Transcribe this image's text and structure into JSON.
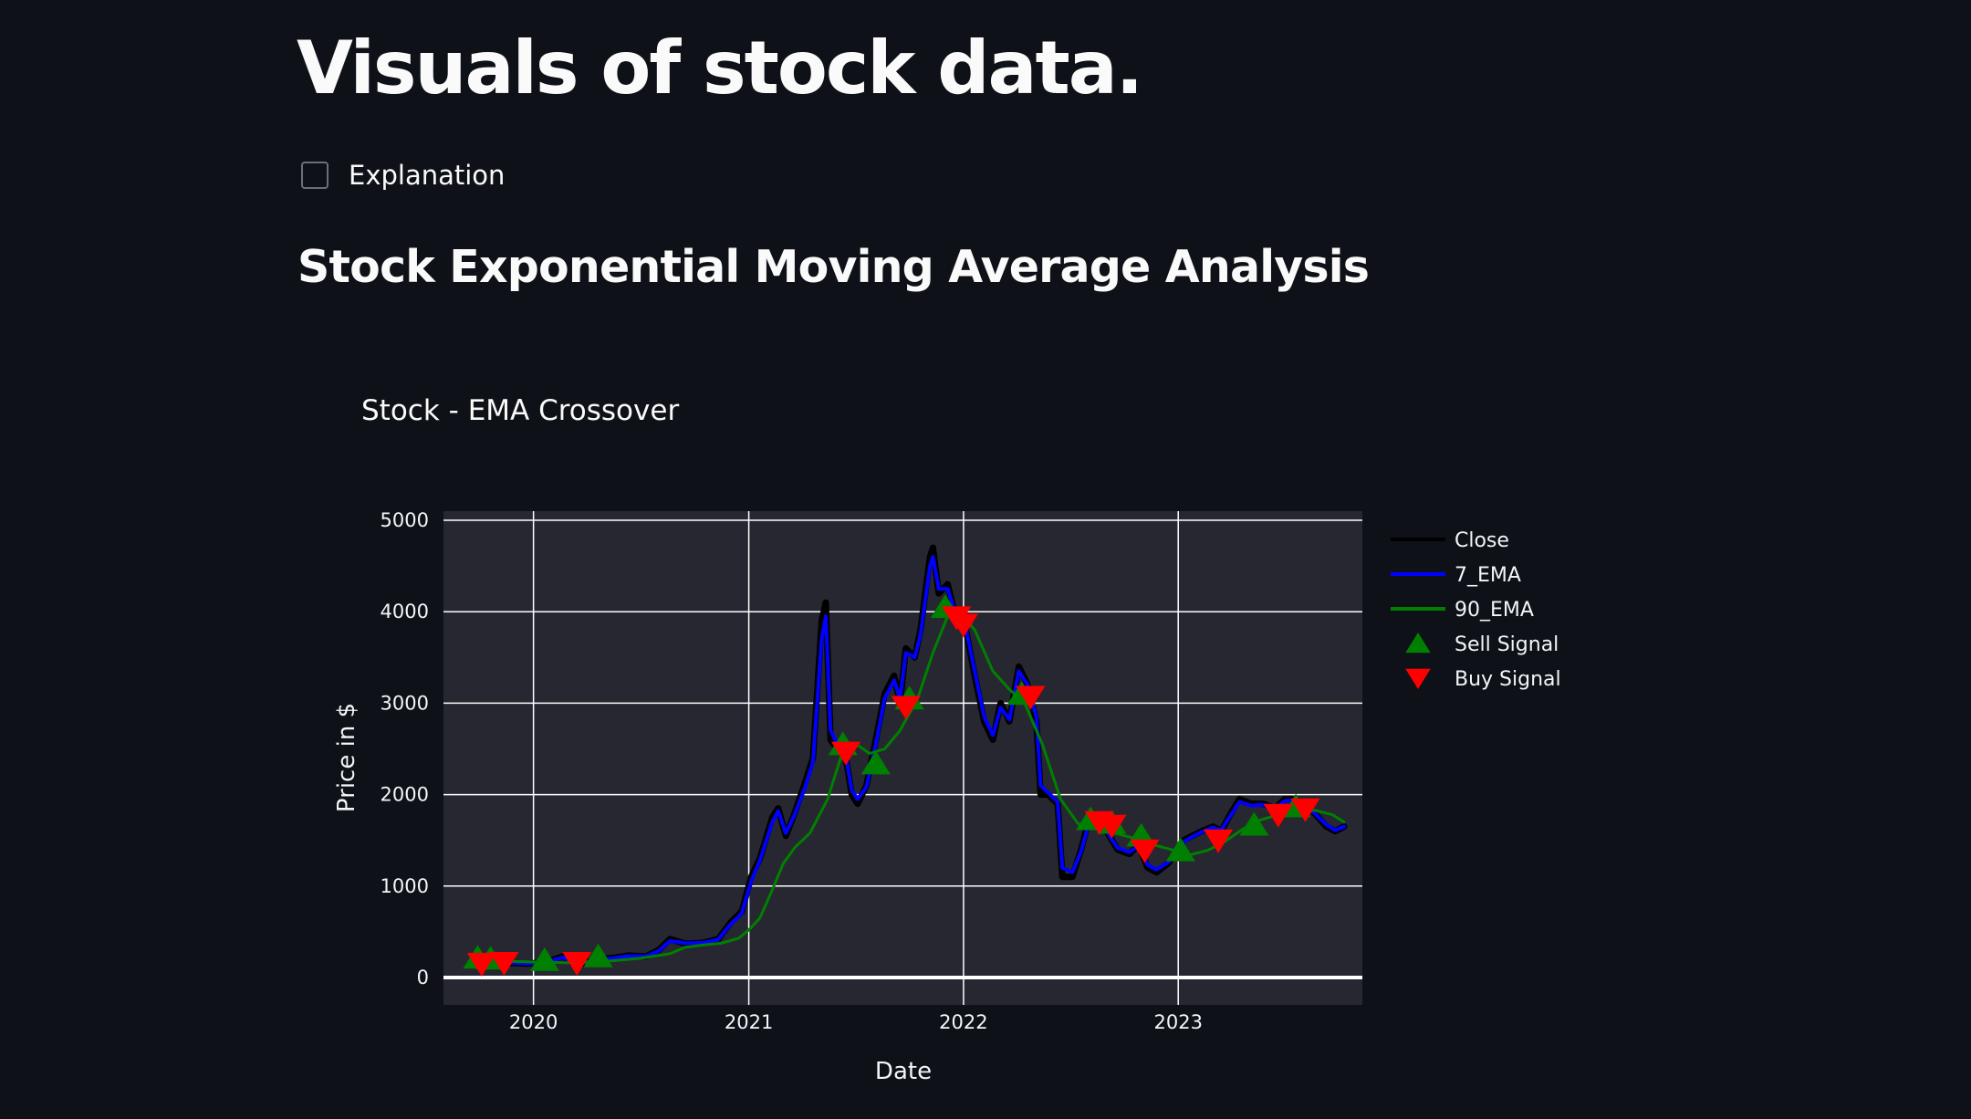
{
  "page": {
    "title": "Visuals of stock data.",
    "checkbox_label": "Explanation",
    "section_title": "Stock Exponential Moving Average Analysis"
  },
  "colors": {
    "background": "#0e1117",
    "plot_background": "#262730",
    "grid": "#ffffff",
    "close": "#000000",
    "ema7": "#0000ff",
    "ema90": "#008000",
    "sell": "#008000",
    "buy": "#ff0000"
  },
  "chart_data": {
    "type": "line",
    "title": "Stock - EMA Crossover",
    "xlabel": "Date",
    "ylabel": "Price in $",
    "xlim": [
      "2019-08-01",
      "2023-11-10"
    ],
    "ylim": [
      -300,
      5100
    ],
    "x_ticks": [
      "2020-01-01",
      "2021-01-01",
      "2022-01-01",
      "2023-01-01"
    ],
    "x_tick_labels": [
      "2020",
      "2021",
      "2022",
      "2023"
    ],
    "y_ticks": [
      0,
      1000,
      2000,
      3000,
      4000,
      5000
    ],
    "grid": true,
    "legend_position": "right",
    "series": [
      {
        "name": "Close",
        "x": [
          "2019-09-25",
          "2019-10-20",
          "2019-11-20",
          "2019-12-20",
          "2020-01-20",
          "2020-02-20",
          "2020-03-15",
          "2020-04-10",
          "2020-05-10",
          "2020-06-10",
          "2020-07-10",
          "2020-08-01",
          "2020-08-20",
          "2020-09-15",
          "2020-10-15",
          "2020-11-10",
          "2020-12-01",
          "2020-12-20",
          "2021-01-05",
          "2021-01-20",
          "2021-02-10",
          "2021-02-20",
          "2021-03-05",
          "2021-03-20",
          "2021-04-05",
          "2021-04-20",
          "2021-05-05",
          "2021-05-12",
          "2021-05-20",
          "2021-06-01",
          "2021-06-15",
          "2021-06-25",
          "2021-07-05",
          "2021-07-20",
          "2021-08-05",
          "2021-08-20",
          "2021-09-05",
          "2021-09-15",
          "2021-09-25",
          "2021-10-10",
          "2021-10-20",
          "2021-11-05",
          "2021-11-10",
          "2021-11-20",
          "2021-12-05",
          "2021-12-20",
          "2022-01-05",
          "2022-01-20",
          "2022-02-05",
          "2022-02-20",
          "2022-03-05",
          "2022-03-20",
          "2022-04-05",
          "2022-04-20",
          "2022-05-05",
          "2022-05-12",
          "2022-05-25",
          "2022-06-10",
          "2022-06-18",
          "2022-07-05",
          "2022-07-20",
          "2022-08-05",
          "2022-08-15",
          "2022-09-01",
          "2022-09-20",
          "2022-10-10",
          "2022-10-25",
          "2022-11-10",
          "2022-11-25",
          "2022-12-15",
          "2023-01-10",
          "2023-01-25",
          "2023-02-10",
          "2023-03-01",
          "2023-03-15",
          "2023-04-01",
          "2023-04-15",
          "2023-05-05",
          "2023-05-25",
          "2023-06-15",
          "2023-07-01",
          "2023-07-15",
          "2023-08-05",
          "2023-08-20",
          "2023-09-10",
          "2023-09-25",
          "2023-10-10"
        ],
        "values": [
          170,
          175,
          160,
          150,
          165,
          230,
          130,
          190,
          210,
          240,
          230,
          300,
          420,
          370,
          380,
          420,
          600,
          720,
          1100,
          1300,
          1750,
          1850,
          1550,
          1800,
          2100,
          2400,
          3900,
          4100,
          2600,
          2500,
          2400,
          2000,
          1900,
          2100,
          2600,
          3100,
          3300,
          3000,
          3600,
          3500,
          3800,
          4600,
          4700,
          4200,
          4300,
          3900,
          3800,
          3300,
          2800,
          2600,
          3000,
          2800,
          3400,
          3200,
          2800,
          2000,
          2000,
          1900,
          1100,
          1100,
          1400,
          1800,
          1750,
          1600,
          1400,
          1350,
          1450,
          1200,
          1150,
          1250,
          1500,
          1550,
          1600,
          1650,
          1600,
          1800,
          1950,
          1900,
          1900,
          1850,
          1950,
          1950,
          1900,
          1800,
          1650,
          1600,
          1650
        ]
      },
      {
        "name": "7_EMA",
        "x": [
          "2019-09-25",
          "2019-10-20",
          "2019-11-20",
          "2019-12-20",
          "2020-01-20",
          "2020-02-20",
          "2020-03-15",
          "2020-04-10",
          "2020-05-10",
          "2020-06-10",
          "2020-07-10",
          "2020-08-01",
          "2020-08-20",
          "2020-09-15",
          "2020-10-15",
          "2020-11-10",
          "2020-12-01",
          "2020-12-20",
          "2021-01-05",
          "2021-01-20",
          "2021-02-10",
          "2021-02-20",
          "2021-03-05",
          "2021-03-20",
          "2021-04-05",
          "2021-04-20",
          "2021-05-05",
          "2021-05-12",
          "2021-05-20",
          "2021-06-01",
          "2021-06-15",
          "2021-06-25",
          "2021-07-05",
          "2021-07-20",
          "2021-08-05",
          "2021-08-20",
          "2021-09-05",
          "2021-09-15",
          "2021-09-25",
          "2021-10-10",
          "2021-10-20",
          "2021-11-05",
          "2021-11-10",
          "2021-11-20",
          "2021-12-05",
          "2021-12-20",
          "2022-01-05",
          "2022-01-20",
          "2022-02-05",
          "2022-02-20",
          "2022-03-05",
          "2022-03-20",
          "2022-04-05",
          "2022-04-20",
          "2022-05-05",
          "2022-05-12",
          "2022-05-25",
          "2022-06-10",
          "2022-06-18",
          "2022-07-05",
          "2022-07-20",
          "2022-08-05",
          "2022-08-15",
          "2022-09-01",
          "2022-09-20",
          "2022-10-10",
          "2022-10-25",
          "2022-11-10",
          "2022-11-25",
          "2022-12-15",
          "2023-01-10",
          "2023-01-25",
          "2023-02-10",
          "2023-03-01",
          "2023-03-15",
          "2023-04-01",
          "2023-04-15",
          "2023-05-05",
          "2023-05-25",
          "2023-06-15",
          "2023-07-01",
          "2023-07-15",
          "2023-08-05",
          "2023-08-20",
          "2023-09-10",
          "2023-09-25",
          "2023-10-10"
        ],
        "values": [
          165,
          172,
          162,
          152,
          162,
          220,
          140,
          185,
          205,
          235,
          232,
          290,
          400,
          375,
          380,
          415,
          580,
          700,
          1050,
          1280,
          1700,
          1820,
          1580,
          1780,
          2050,
          2350,
          3700,
          3950,
          2700,
          2550,
          2420,
          2050,
          1950,
          2080,
          2550,
          3050,
          3250,
          3050,
          3550,
          3500,
          3750,
          4500,
          4600,
          4250,
          4250,
          3950,
          3820,
          3350,
          2850,
          2650,
          2950,
          2820,
          3350,
          3200,
          2850,
          2100,
          2020,
          1920,
          1200,
          1150,
          1380,
          1750,
          1730,
          1600,
          1420,
          1370,
          1440,
          1230,
          1180,
          1260,
          1480,
          1540,
          1590,
          1640,
          1610,
          1780,
          1920,
          1880,
          1890,
          1850,
          1930,
          1940,
          1890,
          1800,
          1670,
          1610,
          1650
        ]
      },
      {
        "name": "90_EMA",
        "x": [
          "2019-09-25",
          "2019-11-01",
          "2020-01-01",
          "2020-03-01",
          "2020-05-01",
          "2020-07-01",
          "2020-08-20",
          "2020-09-15",
          "2020-10-15",
          "2020-11-15",
          "2020-12-15",
          "2021-01-01",
          "2021-01-20",
          "2021-02-10",
          "2021-03-01",
          "2021-03-20",
          "2021-04-15",
          "2021-05-15",
          "2021-06-10",
          "2021-07-01",
          "2021-07-25",
          "2021-08-20",
          "2021-09-15",
          "2021-10-15",
          "2021-11-10",
          "2021-12-05",
          "2021-12-25",
          "2022-01-20",
          "2022-02-20",
          "2022-03-20",
          "2022-04-15",
          "2022-05-15",
          "2022-06-15",
          "2022-07-15",
          "2022-08-15",
          "2022-09-20",
          "2022-10-20",
          "2022-11-20",
          "2022-12-20",
          "2023-01-20",
          "2023-02-20",
          "2023-03-20",
          "2023-04-20",
          "2023-05-20",
          "2023-06-20",
          "2023-07-20",
          "2023-08-20",
          "2023-09-20",
          "2023-10-10"
        ],
        "values": [
          190,
          180,
          170,
          160,
          175,
          210,
          260,
          330,
          355,
          375,
          430,
          520,
          650,
          960,
          1250,
          1420,
          1580,
          1950,
          2480,
          2560,
          2450,
          2500,
          2700,
          3050,
          3550,
          3950,
          4000,
          3800,
          3350,
          3150,
          3000,
          2550,
          1950,
          1680,
          1620,
          1570,
          1520,
          1450,
          1400,
          1340,
          1390,
          1480,
          1620,
          1720,
          1780,
          1800,
          1830,
          1780,
          1700
        ]
      },
      {
        "name": "Sell Signal",
        "mode": "markers",
        "marker": "triangle-up",
        "x": [
          "2019-09-28",
          "2019-10-20",
          "2020-01-20",
          "2020-04-20",
          "2021-06-10",
          "2021-08-05",
          "2021-10-01",
          "2021-12-01",
          "2022-04-10",
          "2022-08-05",
          "2022-09-10",
          "2022-10-30",
          "2023-01-05",
          "2023-05-10",
          "2023-07-20"
        ],
        "values": [
          215,
          205,
          190,
          230,
          2550,
          2340,
          3050,
          4050,
          3100,
          1730,
          1690,
          1550,
          1390,
          1670,
          1870
        ]
      },
      {
        "name": "Buy Signal",
        "mode": "markers",
        "marker": "triangle-down",
        "x": [
          "2019-10-05",
          "2019-11-12",
          "2020-03-15",
          "2021-06-15",
          "2021-09-25",
          "2021-12-20",
          "2022-01-01",
          "2022-04-25",
          "2022-08-20",
          "2022-09-10",
          "2022-11-05",
          "2023-03-10",
          "2023-06-20",
          "2023-08-05"
        ],
        "values": [
          150,
          160,
          160,
          2460,
          2960,
          3940,
          3860,
          3070,
          1700,
          1660,
          1390,
          1500,
          1780,
          1840
        ]
      }
    ]
  }
}
